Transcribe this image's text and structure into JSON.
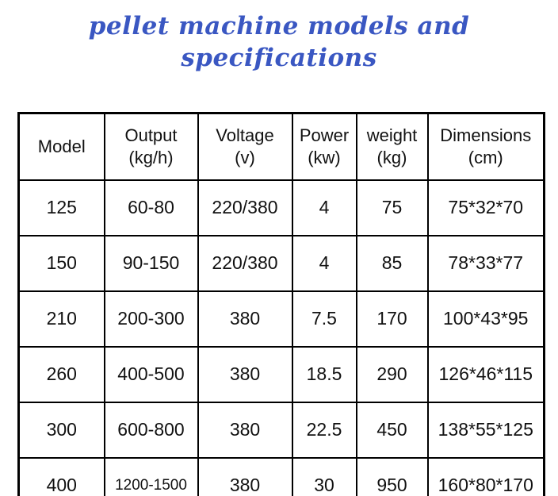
{
  "title": "pellet machine models and specifications",
  "title_color": "#3a57c2",
  "table": {
    "columns": [
      {
        "label": "Model",
        "unit": ""
      },
      {
        "label": "Output",
        "unit": "(kg/h)"
      },
      {
        "label": "Voltage",
        "unit": "(v)"
      },
      {
        "label": "Power",
        "unit": "(kw)"
      },
      {
        "label": "weight",
        "unit": "(kg)"
      },
      {
        "label": "Dimensions",
        "unit": "(cm)"
      }
    ],
    "rows": [
      [
        "125",
        "60-80",
        "220/380",
        "4",
        "75",
        "75*32*70"
      ],
      [
        "150",
        "90-150",
        "220/380",
        "4",
        "85",
        "78*33*77"
      ],
      [
        "210",
        "200-300",
        "380",
        "7.5",
        "170",
        "100*43*95"
      ],
      [
        "260",
        "400-500",
        "380",
        "18.5",
        "290",
        "126*46*115"
      ],
      [
        "300",
        "600-800",
        "380",
        "22.5",
        "450",
        "138*55*125"
      ],
      [
        "400",
        "1200-1500",
        "380",
        "30",
        "950",
        "160*80*170"
      ]
    ]
  },
  "chart_data": {
    "type": "table",
    "title": "pellet machine models and specifications",
    "columns": [
      "Model",
      "Output (kg/h)",
      "Voltage (v)",
      "Power (kw)",
      "weight (kg)",
      "Dimensions (cm)"
    ],
    "rows": [
      [
        "125",
        "60-80",
        "220/380",
        "4",
        "75",
        "75*32*70"
      ],
      [
        "150",
        "90-150",
        "220/380",
        "4",
        "85",
        "78*33*77"
      ],
      [
        "210",
        "200-300",
        "380",
        "7.5",
        "170",
        "100*43*95"
      ],
      [
        "260",
        "400-500",
        "380",
        "18.5",
        "290",
        "126*46*115"
      ],
      [
        "300",
        "600-800",
        "380",
        "22.5",
        "450",
        "138*55*125"
      ],
      [
        "400",
        "1200-1500",
        "380",
        "30",
        "950",
        "160*80*170"
      ]
    ]
  }
}
